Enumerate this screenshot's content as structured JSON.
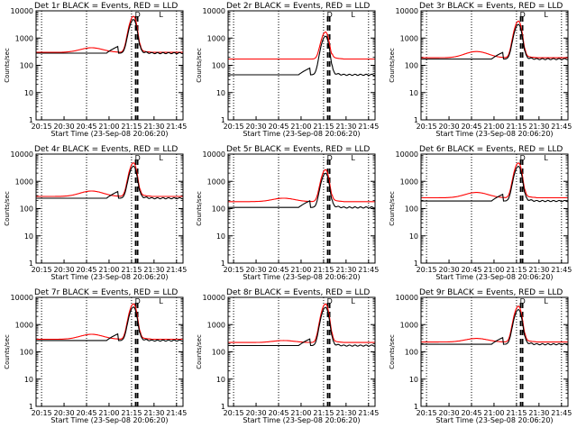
{
  "page": {
    "layout": "3x3 grid of detector light curves"
  },
  "colors": {
    "events": "#000000",
    "lld": "#ff0000",
    "axes": "#000000",
    "grid": "#000000",
    "background": "#ffffff"
  },
  "chart_data": [
    {
      "type": "line",
      "detector": "1r",
      "title": "Det 1r BLACK = Events, RED = LLD",
      "xlabel": "Start Time (23-Sep-08 20:06:20)",
      "ylabel": "Counts/sec",
      "yscale": "log",
      "ylim": [
        1,
        10000
      ],
      "xlim_minutes": [
        5,
        103
      ],
      "xticks": [
        "20:15",
        "20:30",
        "20:45",
        "21:00",
        "21:15",
        "21:30",
        "21:45"
      ],
      "yticks": [
        "1",
        "10",
        "100",
        "1000",
        "10000"
      ],
      "flare_markers": [
        "D",
        "L"
      ],
      "events_base": 280,
      "lld_base": 300,
      "lld_bump": 140,
      "dip_depth": 120,
      "peak": 6000,
      "flare_time_minutes": 70
    },
    {
      "type": "line",
      "detector": "2r",
      "title": "Det 2r BLACK = Events, RED = LLD",
      "xlabel": "Start Time (23-Sep-08 20:06:20)",
      "ylabel": "Counts/sec",
      "yscale": "log",
      "ylim": [
        1,
        10000
      ],
      "xlim_minutes": [
        5,
        103
      ],
      "xticks": [
        "20:15",
        "20:30",
        "20:45",
        "21:00",
        "21:15",
        "21:30",
        "21:45"
      ],
      "yticks": [
        "1",
        "10",
        "100",
        "1000",
        "10000"
      ],
      "flare_markers": [
        "D",
        "L"
      ],
      "events_base": 45,
      "lld_base": 170,
      "lld_bump": 0,
      "dip_depth": 25,
      "peak": 1500,
      "flare_time_minutes": 70
    },
    {
      "type": "line",
      "detector": "3r",
      "title": "Det 3r BLACK = Events, RED = LLD",
      "xlabel": "Start Time (23-Sep-08 20:06:20)",
      "ylabel": "Counts/sec",
      "yscale": "log",
      "ylim": [
        1,
        10000
      ],
      "xlim_minutes": [
        5,
        103
      ],
      "xticks": [
        "20:15",
        "20:30",
        "20:45",
        "21:00",
        "21:15",
        "21:30",
        "21:45"
      ],
      "yticks": [
        "1",
        "10",
        "100",
        "1000",
        "10000"
      ],
      "flare_markers": [
        "D",
        "L"
      ],
      "events_base": 170,
      "lld_base": 190,
      "lld_bump": 130,
      "dip_depth": 70,
      "peak": 4000,
      "flare_time_minutes": 70
    },
    {
      "type": "line",
      "detector": "4r",
      "title": "Det 4r BLACK = Events, RED = LLD",
      "xlabel": "Start Time (23-Sep-08 20:06:20)",
      "ylabel": "Counts/sec",
      "yscale": "log",
      "ylim": [
        1,
        10000
      ],
      "xlim_minutes": [
        5,
        103
      ],
      "xticks": [
        "20:15",
        "20:30",
        "20:45",
        "21:00",
        "21:15",
        "21:30",
        "21:45"
      ],
      "yticks": [
        "1",
        "10",
        "100",
        "1000",
        "10000"
      ],
      "flare_markers": [
        "D",
        "L"
      ],
      "events_base": 240,
      "lld_base": 280,
      "lld_bump": 160,
      "dip_depth": 100,
      "peak": 4500,
      "flare_time_minutes": 70
    },
    {
      "type": "line",
      "detector": "5r",
      "title": "Det 5r BLACK = Events, RED = LLD",
      "xlabel": "Start Time (23-Sep-08 20:06:20)",
      "ylabel": "Counts/sec",
      "yscale": "log",
      "ylim": [
        1,
        10000
      ],
      "xlim_minutes": [
        5,
        103
      ],
      "xticks": [
        "20:15",
        "20:30",
        "20:45",
        "21:00",
        "21:15",
        "21:30",
        "21:45"
      ],
      "yticks": [
        "1",
        "10",
        "100",
        "1000",
        "10000"
      ],
      "flare_markers": [
        "D",
        "L"
      ],
      "events_base": 110,
      "lld_base": 180,
      "lld_bump": 60,
      "dip_depth": 50,
      "peak": 2500,
      "flare_time_minutes": 70
    },
    {
      "type": "line",
      "detector": "6r",
      "title": "Det 6r BLACK = Events, RED = LLD",
      "xlabel": "Start Time (23-Sep-08 20:06:20)",
      "ylabel": "Counts/sec",
      "yscale": "log",
      "ylim": [
        1,
        10000
      ],
      "xlim_minutes": [
        5,
        103
      ],
      "xticks": [
        "20:15",
        "20:30",
        "20:45",
        "21:00",
        "21:15",
        "21:30",
        "21:45"
      ],
      "yticks": [
        "1",
        "10",
        "100",
        "1000",
        "10000"
      ],
      "flare_markers": [
        "D",
        "L"
      ],
      "events_base": 190,
      "lld_base": 250,
      "lld_bump": 140,
      "dip_depth": 80,
      "peak": 4500,
      "flare_time_minutes": 70
    },
    {
      "type": "line",
      "detector": "7r",
      "title": "Det 7r BLACK = Events, RED = LLD",
      "xlabel": "Start Time (23-Sep-08 20:06:20)",
      "ylabel": "Counts/sec",
      "yscale": "log",
      "ylim": [
        1,
        10000
      ],
      "xlim_minutes": [
        5,
        103
      ],
      "xticks": [
        "20:15",
        "20:30",
        "20:45",
        "21:00",
        "21:15",
        "21:30",
        "21:45"
      ],
      "yticks": [
        "1",
        "10",
        "100",
        "1000",
        "10000"
      ],
      "flare_markers": [
        "D",
        "L"
      ],
      "events_base": 260,
      "lld_base": 290,
      "lld_bump": 150,
      "dip_depth": 110,
      "peak": 5500,
      "flare_time_minutes": 70
    },
    {
      "type": "line",
      "detector": "8r",
      "title": "Det 8r BLACK = Events, RED = LLD",
      "xlabel": "Start Time (23-Sep-08 20:06:20)",
      "ylabel": "Counts/sec",
      "yscale": "log",
      "ylim": [
        1,
        10000
      ],
      "xlim_minutes": [
        5,
        103
      ],
      "xticks": [
        "20:15",
        "20:30",
        "20:45",
        "21:00",
        "21:15",
        "21:30",
        "21:45"
      ],
      "yticks": [
        "1",
        "10",
        "100",
        "1000",
        "10000"
      ],
      "flare_markers": [
        "D",
        "L"
      ],
      "events_base": 170,
      "lld_base": 220,
      "lld_bump": 40,
      "dip_depth": 70,
      "peak": 5500,
      "flare_time_minutes": 70
    },
    {
      "type": "line",
      "detector": "9r",
      "title": "Det 9r BLACK = Events, RED = LLD",
      "xlabel": "Start Time (23-Sep-08 20:06:20)",
      "ylabel": "Counts/sec",
      "yscale": "log",
      "ylim": [
        1,
        10000
      ],
      "xlim_minutes": [
        5,
        103
      ],
      "xticks": [
        "20:15",
        "20:30",
        "20:45",
        "21:00",
        "21:15",
        "21:30",
        "21:45"
      ],
      "yticks": [
        "1",
        "10",
        "100",
        "1000",
        "10000"
      ],
      "flare_markers": [
        "D",
        "L"
      ],
      "events_base": 190,
      "lld_base": 230,
      "lld_bump": 80,
      "dip_depth": 80,
      "peak": 4500,
      "flare_time_minutes": 70
    }
  ]
}
